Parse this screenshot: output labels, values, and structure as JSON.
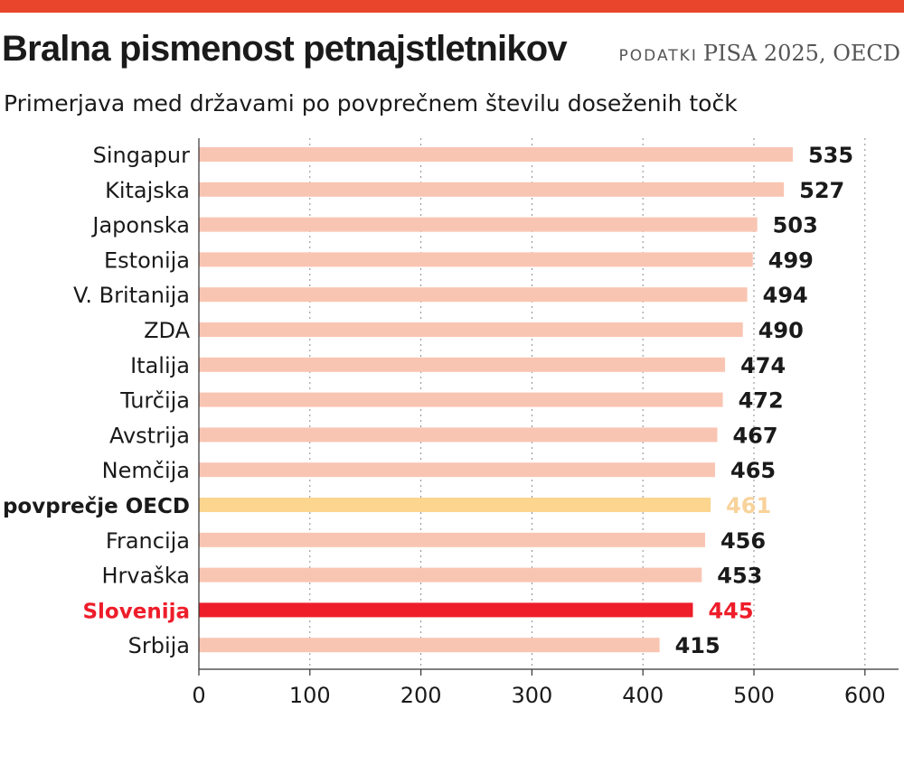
{
  "header": {
    "title": "Bralna pismenost petnajstletnikov",
    "source_label": "PODATKI",
    "source_text": "PISA 2025, OECD",
    "subtitle": "Primerjava med državami po povprečnem številu doseženih točk"
  },
  "colors": {
    "accent_rule": "#e8452c",
    "bar_default": "#f9c5b3",
    "bar_oecd": "#fcd58f",
    "bar_slovenia": "#ee1d2a",
    "value_default": "#1a1a1a",
    "value_oecd": "#f8d29a",
    "value_slovenia": "#ee1d2a",
    "label_default": "#1a1a1a",
    "label_oecd": "#1a1a1a",
    "label_slovenia": "#ee1d2a"
  },
  "chart_data": {
    "type": "bar",
    "orientation": "horizontal",
    "categories": [
      "Singapur",
      "Kitajska",
      "Japonska",
      "Estonija",
      "V. Britanija",
      "ZDA",
      "Italija",
      "Turčija",
      "Avstrija",
      "Nemčija",
      "povprečje OECD",
      "Francija",
      "Hrvaška",
      "Slovenija",
      "Srbija"
    ],
    "values": [
      535,
      527,
      503,
      499,
      494,
      490,
      474,
      472,
      467,
      465,
      461,
      456,
      453,
      445,
      415
    ],
    "highlight": {
      "povprečje OECD": "oecd",
      "Slovenija": "slovenia"
    },
    "xlim": [
      0,
      630
    ],
    "xticks": [
      0,
      100,
      200,
      300,
      400,
      500,
      600
    ],
    "grid": true,
    "xlabel": "",
    "ylabel": ""
  }
}
